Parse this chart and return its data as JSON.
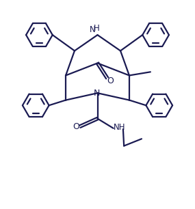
{
  "bg_color": "#ffffff",
  "line_color": "#1a1a52",
  "line_width": 1.6,
  "figsize": [
    2.85,
    3.06
  ],
  "dpi": 100,
  "xlim": [
    -5.5,
    5.5
  ],
  "ylim": [
    -6.5,
    5.0
  ]
}
